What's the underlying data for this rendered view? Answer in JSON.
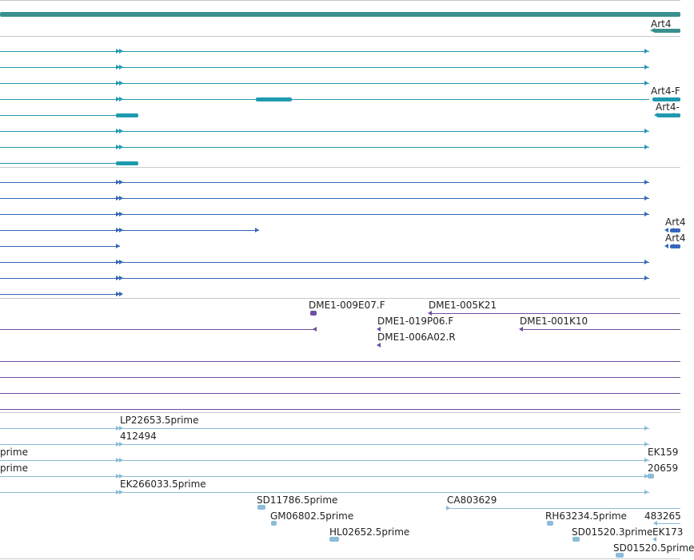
{
  "colors": {
    "gene": "#3a8f8f",
    "transcript": "#1e9ab0",
    "transcript2": "#3567b8",
    "clone": "#6e4fa0",
    "est": "#8bbcd8"
  },
  "gene_track": {
    "label": "Art4"
  },
  "transcripts": {
    "label_a": "Art4-F",
    "label_b": "Art4-"
  },
  "transcripts2": {
    "label_a": "Art4",
    "label_b": "Art4"
  },
  "clones": {
    "labels": [
      "DME1-009E07.F",
      "DME1-005K21",
      "DME1-019P06.F",
      "DME1-001K10",
      "DME1-006A02.R"
    ]
  },
  "ests": {
    "labels": [
      "LP22653.5prime",
      "412494",
      "prime",
      "prime",
      "EK159",
      "20659",
      "EK266033.5prime",
      "SD11786.5prime",
      "CA803629",
      "GM06802.5prime",
      "RH63234.5prime",
      "483265",
      "HL02652.5prime",
      "SD01520.3prime",
      "EK173",
      "SD01520.5prime"
    ]
  }
}
